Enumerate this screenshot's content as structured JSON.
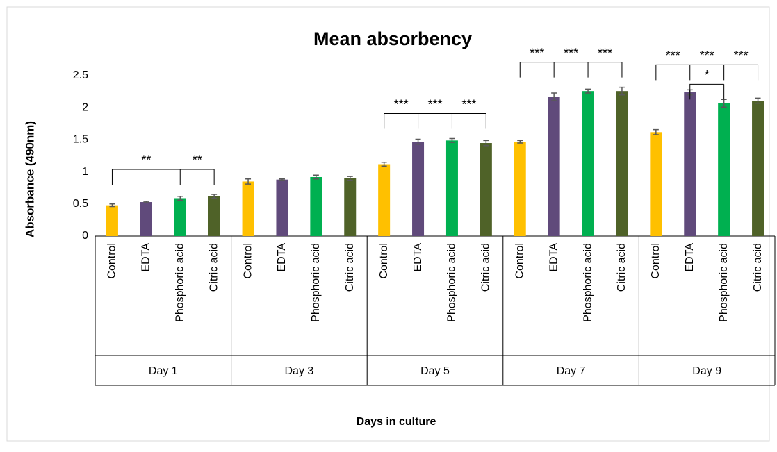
{
  "chart_data": {
    "type": "bar",
    "title": "Mean absorbency",
    "ylabel": "Absorbance (490nm)",
    "xlabel": "Days in culture",
    "categories": [
      "Day 1",
      "Day 3",
      "Day 5",
      "Day 7",
      "Day 9"
    ],
    "series": [
      {
        "name": "Control",
        "color": "#ffc000",
        "values": [
          0.48,
          0.85,
          1.12,
          1.47,
          1.62
        ],
        "errors": [
          0.02,
          0.04,
          0.03,
          0.02,
          0.04
        ]
      },
      {
        "name": "EDTA",
        "color": "#604a7b",
        "values": [
          0.53,
          0.88,
          1.47,
          2.17,
          2.24
        ],
        "errors": [
          0.01,
          0.01,
          0.04,
          0.06,
          0.04
        ]
      },
      {
        "name": "Phosphoric acid",
        "color": "#00b050",
        "values": [
          0.59,
          0.92,
          1.49,
          2.26,
          2.07
        ],
        "errors": [
          0.03,
          0.03,
          0.03,
          0.03,
          0.06
        ]
      },
      {
        "name": "Citric acid",
        "color": "#4f6228",
        "values": [
          0.62,
          0.9,
          1.45,
          2.26,
          2.11
        ],
        "errors": [
          0.03,
          0.03,
          0.04,
          0.06,
          0.04
        ]
      }
    ],
    "ylim": [
      0,
      2.5
    ],
    "yticks": [
      0,
      0.5,
      1,
      1.5,
      2,
      2.5
    ],
    "significance": [
      {
        "group": "Day 1",
        "vs": "Control",
        "against": [
          "Phosphoric acid",
          "Citric acid"
        ],
        "labels": [
          "**",
          "**"
        ]
      },
      {
        "group": "Day 5",
        "vs": "Control",
        "against": [
          "EDTA",
          "Phosphoric acid",
          "Citric acid"
        ],
        "labels": [
          "***",
          "***",
          "***"
        ]
      },
      {
        "group": "Day 7",
        "vs": "Control",
        "against": [
          "EDTA",
          "Phosphoric acid",
          "Citric acid"
        ],
        "labels": [
          "***",
          "***",
          "***"
        ]
      },
      {
        "group": "Day 9",
        "vs": "Control",
        "against": [
          "EDTA",
          "Phosphoric acid",
          "Citric acid"
        ],
        "labels": [
          "***",
          "***",
          "***"
        ]
      },
      {
        "group": "Day 9",
        "vs": "EDTA",
        "against": [
          "Phosphoric acid"
        ],
        "labels": [
          "*"
        ]
      }
    ]
  }
}
